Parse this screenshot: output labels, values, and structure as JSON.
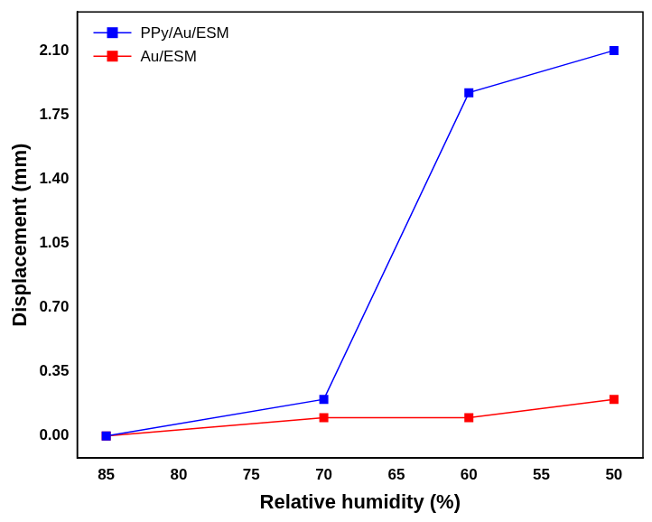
{
  "chart_data": {
    "type": "line",
    "x_label": "Relative humidity (%)",
    "y_label": "Displacement (mm)",
    "xlim": [
      87,
      48
    ],
    "xticks": [
      85,
      80,
      75,
      70,
      65,
      60,
      55,
      50
    ],
    "ylim": [
      -0.12,
      2.31
    ],
    "yticks": [
      {
        "value": 0,
        "label": "0.00"
      },
      {
        "value": 0.35,
        "label": "0.35"
      },
      {
        "value": 0.7,
        "label": "0.70"
      },
      {
        "value": 1.05,
        "label": "1.05"
      },
      {
        "value": 1.4,
        "label": "1.40"
      },
      {
        "value": 1.75,
        "label": "1.75"
      },
      {
        "value": 2.1,
        "label": "2.10"
      }
    ],
    "grid": false,
    "legend": "upper left",
    "series": [
      {
        "name": "PPy/Au/ESM",
        "color": "#0000ff",
        "marker": "square",
        "line_style": "solid",
        "x": [
          85,
          70,
          60,
          50
        ],
        "values": [
          0,
          0.2,
          1.87,
          2.1
        ]
      },
      {
        "name": "Au/ESM",
        "color": "#ff0000",
        "marker": "square",
        "line_style": "solid",
        "x": [
          85,
          70,
          60,
          50
        ],
        "values": [
          0,
          0.1,
          0.1,
          0.2
        ]
      }
    ]
  }
}
